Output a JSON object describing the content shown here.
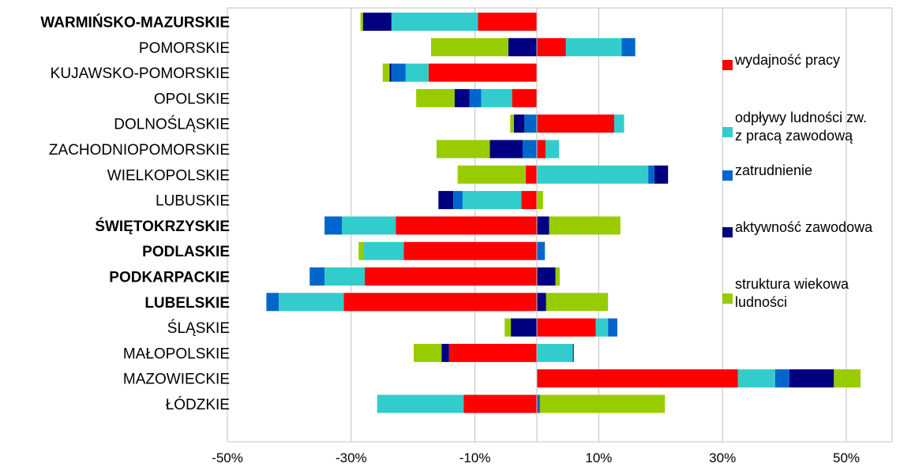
{
  "chart_data": {
    "type": "bar",
    "orientation": "horizontal",
    "stacked": "diverging",
    "title": "",
    "xlabel": "",
    "ylabel": "",
    "xlim": [
      -50,
      50
    ],
    "x_ticks": [
      -50,
      -30,
      -10,
      10,
      30,
      50
    ],
    "x_tick_labels": [
      "-50%",
      "-30%",
      "-10%",
      "10%",
      "30%",
      "50%"
    ],
    "grid": "vertical",
    "legend_position": "right",
    "categories": [
      {
        "label": "WARMIŃSKO-MAZURSKIE",
        "bold": true
      },
      {
        "label": "POMORSKIE",
        "bold": false
      },
      {
        "label": "KUJAWSKO-POMORSKIE",
        "bold": false
      },
      {
        "label": "OPOLSKIE",
        "bold": false
      },
      {
        "label": "DOLNOŚLĄSKIE",
        "bold": false
      },
      {
        "label": "ZACHODNIOPOMORSKIE",
        "bold": false
      },
      {
        "label": "WIELKOPOLSKIE",
        "bold": false
      },
      {
        "label": "LUBUSKIE",
        "bold": false
      },
      {
        "label": "ŚWIĘTOKRZYSKIE",
        "bold": true
      },
      {
        "label": "PODLASKIE",
        "bold": true
      },
      {
        "label": "PODKARPACKIE",
        "bold": true
      },
      {
        "label": "LUBELSKIE",
        "bold": true
      },
      {
        "label": "ŚLĄSKIE",
        "bold": false
      },
      {
        "label": "MAŁOPOLSKIE",
        "bold": false
      },
      {
        "label": "MAZOWIECKIE",
        "bold": false
      },
      {
        "label": "ŁÓDZKIE",
        "bold": false
      }
    ],
    "series": [
      {
        "name": "wydajność pracy",
        "color": "#ff0000",
        "values": [
          -9.5,
          4.7,
          -17.5,
          -4.0,
          12.5,
          1.4,
          -1.8,
          -2.5,
          -22.8,
          -21.5,
          -27.8,
          -31.2,
          9.5,
          -14.2,
          32.5,
          -11.8
        ]
      },
      {
        "name": "odpływy ludności zw. z pracą zawodową",
        "color": "#33cccc",
        "values": [
          -14.0,
          9.0,
          -3.7,
          -5.0,
          1.6,
          2.2,
          18.0,
          -9.5,
          -8.7,
          -6.5,
          -6.5,
          -10.5,
          2.0,
          5.8,
          6.0,
          -14.0
        ]
      },
      {
        "name": "zatrudnienie",
        "color": "#0066cc",
        "values": [
          0,
          2.2,
          -2.3,
          -1.9,
          -2.0,
          -2.3,
          1.0,
          -1.5,
          -2.8,
          1.3,
          -2.4,
          -2.0,
          1.5,
          0.2,
          2.3,
          0.5
        ]
      },
      {
        "name": "aktywność zawodowa",
        "color": "#000080",
        "values": [
          -4.6,
          -4.6,
          -0.3,
          -2.4,
          -1.7,
          -5.3,
          2.2,
          -2.4,
          2.0,
          0,
          3.0,
          1.5,
          -4.2,
          -1.2,
          7.2,
          0
        ]
      },
      {
        "name": "struktura wiekowa ludności",
        "color": "#99cc00",
        "values": [
          -0.4,
          -12.5,
          -1.1,
          -6.2,
          -0.6,
          -8.6,
          -11.0,
          1.0,
          11.5,
          -0.8,
          0.7,
          10.0,
          -1.0,
          -4.5,
          4.3,
          20.2
        ]
      }
    ]
  }
}
